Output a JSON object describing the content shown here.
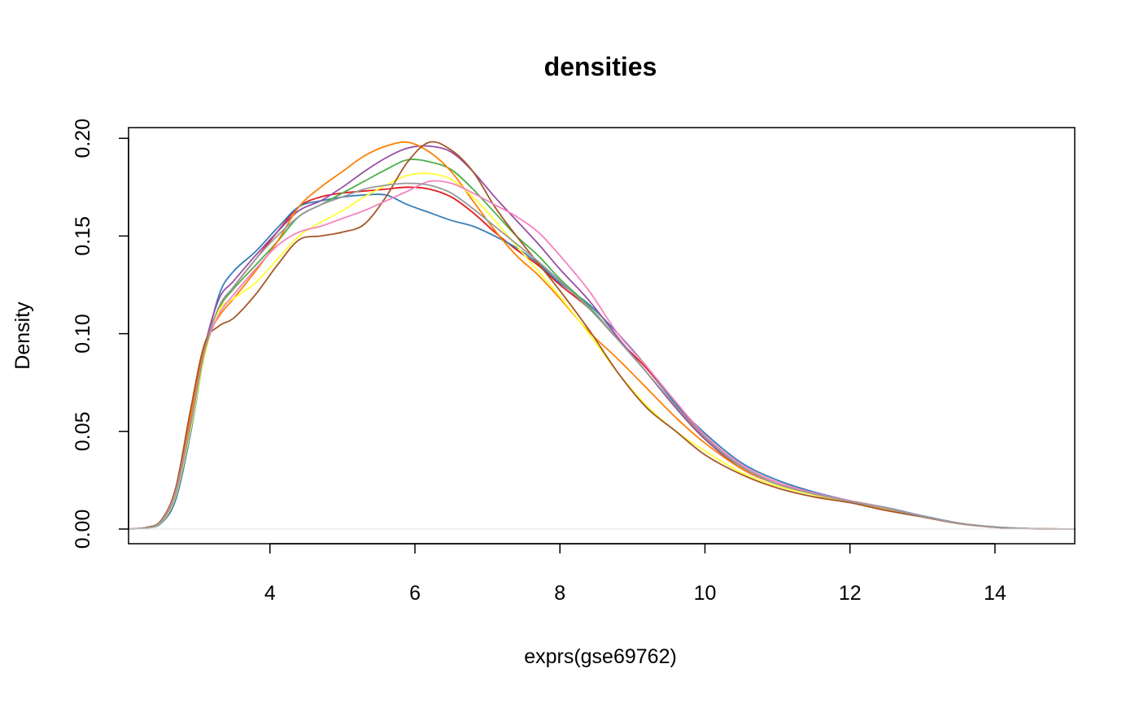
{
  "chart_data": {
    "type": "line",
    "title": "densities",
    "xlabel": "exprs(gse69762)",
    "ylabel": "Density",
    "xlim": [
      2.05,
      15.1
    ],
    "ylim": [
      -0.0075,
      0.2055
    ],
    "xticks": [
      4,
      6,
      8,
      10,
      12,
      14
    ],
    "xtick_labels": [
      "4",
      "6",
      "8",
      "10",
      "12",
      "14"
    ],
    "yticks": [
      0,
      0.05,
      0.1,
      0.15,
      0.2
    ],
    "ytick_labels": [
      "0.00",
      "0.05",
      "0.10",
      "0.15",
      "0.20"
    ],
    "grid": false,
    "legend": "none",
    "colors": [
      "#e41a1c",
      "#377eb8",
      "#4daf4a",
      "#984ea3",
      "#ff7f00",
      "#ffff33",
      "#a65628",
      "#f781bf",
      "#999999"
    ],
    "x": [
      2.05,
      2.3,
      2.5,
      2.7,
      2.9,
      3.1,
      3.3,
      3.5,
      3.8,
      4.1,
      4.4,
      4.7,
      5.0,
      5.3,
      5.6,
      5.9,
      6.2,
      6.5,
      6.8,
      7.1,
      7.4,
      7.7,
      8.0,
      8.4,
      8.8,
      9.2,
      9.6,
      10.0,
      10.5,
      11.0,
      11.5,
      12.0,
      12.5,
      13.0,
      13.5,
      14.0,
      14.5,
      15.1
    ],
    "series": [
      {
        "values": [
          0,
          0.0008,
          0.004,
          0.019,
          0.055,
          0.093,
          0.113,
          0.124,
          0.138,
          0.152,
          0.165,
          0.17,
          0.172,
          0.173,
          0.174,
          0.175,
          0.174,
          0.17,
          0.162,
          0.152,
          0.143,
          0.135,
          0.125,
          0.113,
          0.097,
          0.082,
          0.064,
          0.047,
          0.032,
          0.023,
          0.018,
          0.014,
          0.0105,
          0.0065,
          0.003,
          0.001,
          0.0002,
          0
        ]
      },
      {
        "values": [
          0,
          0.0005,
          0.003,
          0.015,
          0.048,
          0.09,
          0.12,
          0.132,
          0.142,
          0.154,
          0.165,
          0.168,
          0.17,
          0.171,
          0.171,
          0.166,
          0.162,
          0.158,
          0.155,
          0.15,
          0.144,
          0.136,
          0.126,
          0.115,
          0.1,
          0.083,
          0.064,
          0.049,
          0.034,
          0.025,
          0.019,
          0.0145,
          0.011,
          0.0068,
          0.0031,
          0.0011,
          0.0002,
          0
        ]
      },
      {
        "values": [
          0,
          0.0007,
          0.0038,
          0.018,
          0.052,
          0.092,
          0.113,
          0.123,
          0.135,
          0.147,
          0.16,
          0.166,
          0.172,
          0.178,
          0.184,
          0.189,
          0.188,
          0.184,
          0.174,
          0.162,
          0.15,
          0.14,
          0.128,
          0.114,
          0.097,
          0.08,
          0.062,
          0.046,
          0.032,
          0.023,
          0.018,
          0.0145,
          0.0108,
          0.0066,
          0.003,
          0.001,
          0.0002,
          0
        ]
      },
      {
        "values": [
          0,
          0.0007,
          0.0037,
          0.018,
          0.052,
          0.093,
          0.118,
          0.127,
          0.14,
          0.152,
          0.163,
          0.168,
          0.175,
          0.183,
          0.19,
          0.195,
          0.196,
          0.193,
          0.183,
          0.17,
          0.158,
          0.146,
          0.133,
          0.117,
          0.098,
          0.08,
          0.062,
          0.046,
          0.031,
          0.023,
          0.018,
          0.0142,
          0.0106,
          0.0065,
          0.003,
          0.001,
          0.0002,
          0
        ]
      },
      {
        "values": [
          0,
          0.0008,
          0.0042,
          0.02,
          0.057,
          0.094,
          0.109,
          0.118,
          0.132,
          0.147,
          0.165,
          0.175,
          0.183,
          0.191,
          0.196,
          0.198,
          0.193,
          0.183,
          0.168,
          0.153,
          0.14,
          0.13,
          0.118,
          0.101,
          0.087,
          0.072,
          0.057,
          0.044,
          0.031,
          0.023,
          0.0175,
          0.0138,
          0.0103,
          0.0063,
          0.0029,
          0.001,
          0.0002,
          0
        ]
      },
      {
        "values": [
          0,
          0.0006,
          0.0035,
          0.017,
          0.05,
          0.089,
          0.112,
          0.118,
          0.126,
          0.138,
          0.15,
          0.157,
          0.163,
          0.17,
          0.176,
          0.181,
          0.182,
          0.179,
          0.17,
          0.158,
          0.145,
          0.132,
          0.119,
          0.1,
          0.08,
          0.063,
          0.05,
          0.04,
          0.029,
          0.022,
          0.0175,
          0.014,
          0.0105,
          0.0064,
          0.003,
          0.001,
          0.0002,
          0
        ]
      },
      {
        "values": [
          0,
          0.0009,
          0.0045,
          0.021,
          0.06,
          0.095,
          0.104,
          0.108,
          0.12,
          0.135,
          0.148,
          0.15,
          0.152,
          0.156,
          0.17,
          0.188,
          0.198,
          0.194,
          0.183,
          0.165,
          0.15,
          0.136,
          0.122,
          0.102,
          0.08,
          0.062,
          0.05,
          0.038,
          0.028,
          0.021,
          0.0165,
          0.0135,
          0.0095,
          0.0062,
          0.0028,
          0.0009,
          0.0001,
          0
        ]
      },
      {
        "values": [
          0,
          0.0007,
          0.0039,
          0.019,
          0.053,
          0.091,
          0.11,
          0.12,
          0.133,
          0.145,
          0.152,
          0.155,
          0.159,
          0.163,
          0.168,
          0.173,
          0.178,
          0.177,
          0.172,
          0.166,
          0.16,
          0.152,
          0.14,
          0.122,
          0.1,
          0.083,
          0.065,
          0.048,
          0.033,
          0.024,
          0.0185,
          0.0145,
          0.0108,
          0.0066,
          0.003,
          0.001,
          0.0002,
          0
        ]
      },
      {
        "values": [
          0,
          0.0007,
          0.0038,
          0.018,
          0.052,
          0.091,
          0.114,
          0.124,
          0.138,
          0.15,
          0.16,
          0.166,
          0.17,
          0.174,
          0.176,
          0.177,
          0.176,
          0.172,
          0.164,
          0.155,
          0.146,
          0.137,
          0.127,
          0.113,
          0.097,
          0.08,
          0.063,
          0.047,
          0.032,
          0.023,
          0.018,
          0.0142,
          0.0106,
          0.0065,
          0.003,
          0.001,
          0.0002,
          0
        ]
      }
    ]
  }
}
